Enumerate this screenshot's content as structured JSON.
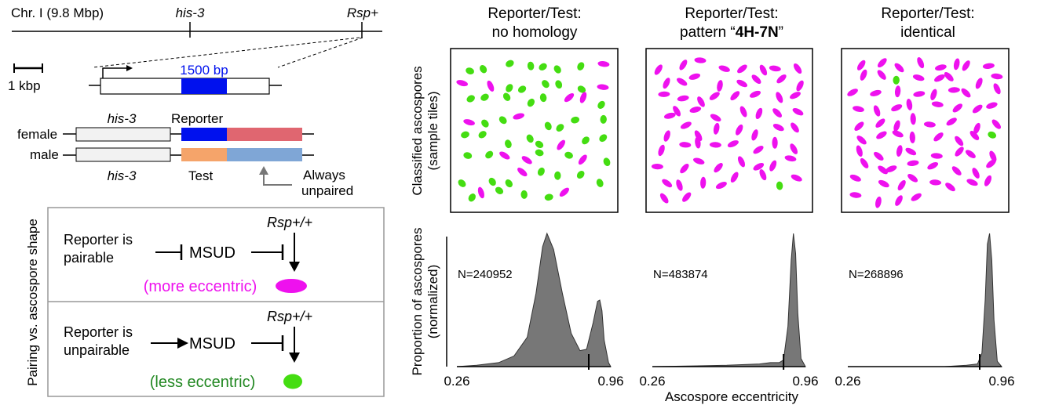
{
  "chromosome": {
    "label": "Chr. I (9.8 Mbp)",
    "his3": "his-3",
    "rsp": "Rsp+"
  },
  "scale": {
    "label": "1 kbp"
  },
  "construct": {
    "bp_label": "1500 bp"
  },
  "alleles": {
    "female": "female",
    "male": "male",
    "his3_top": "his-3",
    "his3_bottom": "his-3",
    "reporter": "Reporter",
    "test": "Test",
    "unpaired_line1": "Always",
    "unpaired_line2": "unpaired"
  },
  "model": {
    "side_label": "Pairing vs. ascospore shape",
    "top": {
      "reporter_line1": "Reporter is",
      "reporter_line2": "pairable",
      "msud": "MSUD",
      "rsp": "Rsp+/+",
      "outcome": "(more eccentric)"
    },
    "bottom": {
      "reporter_line1": "Reporter is",
      "reporter_line2": "unpairable",
      "msud": "MSUD",
      "rsp": "Rsp+/+",
      "outcome": "(less eccentric)"
    }
  },
  "panels": [
    {
      "title_line1": "Reporter/Test:",
      "title_line2": "no homology",
      "n": "N=240952"
    },
    {
      "title_line1": "Reporter/Test:",
      "title_line2_pre": "pattern “",
      "title_line2_bold": "4H-7N",
      "title_line2_post": "”",
      "n": "N=483874"
    },
    {
      "title_line1": "Reporter/Test:",
      "title_line2": "identical",
      "n": "N=268896"
    }
  ],
  "tiles_label_line1": "Classified ascospores",
  "tiles_label_line2": "(sample tiles)",
  "density_label_line1": "Proportion of ascospores",
  "density_label_line2": "(normalized)",
  "x_axis_title": "Ascospore eccentricity",
  "x_ticks": [
    "0.26",
    "0.96"
  ],
  "colors": {
    "magenta": "#ee11ee",
    "green": "#44dd11",
    "blue": "#0011ee",
    "orange": "#f5a46a",
    "red_pink": "#e06670",
    "light_blue": "#7fa6d6",
    "gray_fill": "#777777",
    "green_text": "#228822"
  },
  "chart_data": {
    "type": "area",
    "x_range": [
      0.26,
      0.96
    ],
    "xlabel": "Ascospore eccentricity",
    "ylabel": "Proportion of ascospores (normalized)",
    "series": [
      {
        "name": "no homology",
        "marker": 0.86,
        "points": [
          [
            0.26,
            0.0
          ],
          [
            0.35,
            0.01
          ],
          [
            0.45,
            0.03
          ],
          [
            0.52,
            0.08
          ],
          [
            0.58,
            0.22
          ],
          [
            0.62,
            0.55
          ],
          [
            0.65,
            0.9
          ],
          [
            0.67,
            1.0
          ],
          [
            0.7,
            0.88
          ],
          [
            0.74,
            0.55
          ],
          [
            0.78,
            0.25
          ],
          [
            0.82,
            0.12
          ],
          [
            0.85,
            0.13
          ],
          [
            0.88,
            0.33
          ],
          [
            0.9,
            0.49
          ],
          [
            0.91,
            0.5
          ],
          [
            0.92,
            0.42
          ],
          [
            0.93,
            0.2
          ],
          [
            0.95,
            0.03
          ],
          [
            0.96,
            0.0
          ]
        ]
      },
      {
        "name": "pattern 4H-7N",
        "marker": 0.86,
        "points": [
          [
            0.26,
            0.0
          ],
          [
            0.6,
            0.01
          ],
          [
            0.75,
            0.02
          ],
          [
            0.8,
            0.03
          ],
          [
            0.84,
            0.03
          ],
          [
            0.86,
            0.05
          ],
          [
            0.88,
            0.3
          ],
          [
            0.895,
            0.8
          ],
          [
            0.905,
            1.0
          ],
          [
            0.915,
            0.85
          ],
          [
            0.925,
            0.4
          ],
          [
            0.94,
            0.06
          ],
          [
            0.96,
            0.0
          ]
        ]
      },
      {
        "name": "identical",
        "marker": 0.86,
        "points": [
          [
            0.26,
            0.0
          ],
          [
            0.7,
            0.0
          ],
          [
            0.8,
            0.01
          ],
          [
            0.85,
            0.02
          ],
          [
            0.87,
            0.1
          ],
          [
            0.885,
            0.5
          ],
          [
            0.895,
            0.92
          ],
          [
            0.905,
            1.0
          ],
          [
            0.915,
            0.8
          ],
          [
            0.925,
            0.35
          ],
          [
            0.94,
            0.04
          ],
          [
            0.96,
            0.0
          ]
        ]
      }
    ]
  }
}
